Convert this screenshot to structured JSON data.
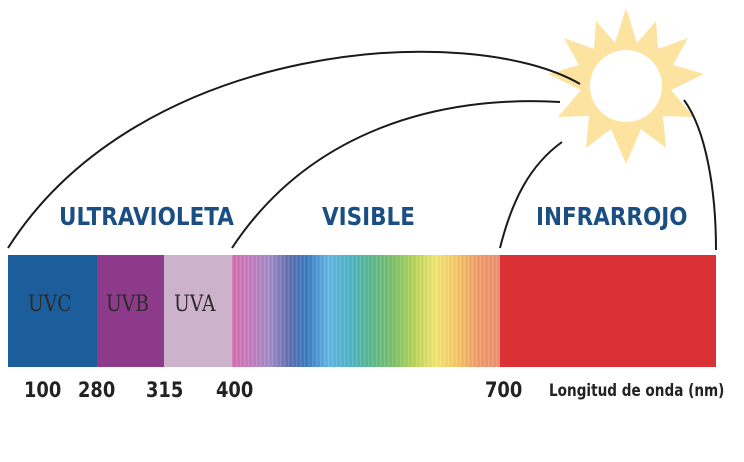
{
  "regions": {
    "ultraviolet": "ULTRAVIOLETA",
    "visible": "VISIBLE",
    "infrared": "INFRARROJO"
  },
  "uv_bands": {
    "uvc": "UVC",
    "uvb": "UVB",
    "uva": "UVA"
  },
  "ticks": [
    "100",
    "280",
    "315",
    "400",
    "700"
  ],
  "axis_unit_label": "Longitud de onda  (nm)",
  "colors": {
    "label_blue": "#1b4f84",
    "uvc": "#1b5e9b",
    "uvb": "#8e3a8a",
    "uva": "#cdb2cc",
    "infrared": "#da3136",
    "sun": "#fde3a0"
  },
  "icons": {
    "sun": "sun-icon"
  }
}
